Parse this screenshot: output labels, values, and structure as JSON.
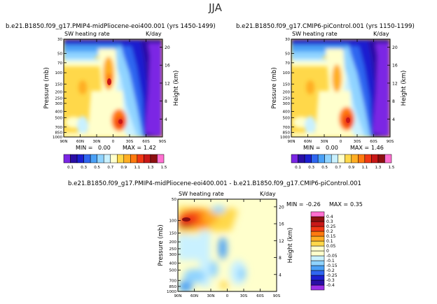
{
  "figure_title": "JJA",
  "colors": {
    "seq_fill": [
      "#7b26e4",
      "#2a0fa6",
      "#1c1fd0",
      "#2f66f0",
      "#4aa0f6",
      "#8fd3ff",
      "#c9f1ff",
      "#ffffcc",
      "#ffd84a",
      "#ffae24",
      "#ff7a10",
      "#f03814",
      "#c81818",
      "#8c1010",
      "#ff6fd0"
    ],
    "div_fill": [
      "#9b2fe8",
      "#2a0fa6",
      "#1c1fd0",
      "#2f66f0",
      "#4aa0f6",
      "#8fd3ff",
      "#c9f1ff",
      "#ffffcc",
      "#ffffcc",
      "#ffd84a",
      "#ffae24",
      "#ff7a10",
      "#f03814",
      "#c81818",
      "#8c1010",
      "#ff6fd0"
    ]
  },
  "chart_data": [
    {
      "type": "heatmap",
      "name": "midPliocene",
      "title": "b.e21.B1850.f09_g17.PMIP4-midPliocene-eoi400.001  (yrs 1450-1499)",
      "left_label": "SW heating rate",
      "right_label": "K/day",
      "ylabel": "Pressure (mb)",
      "ylabel_right": "Height (km)",
      "xticks": [
        "90N",
        "60N",
        "30N",
        "0",
        "30S",
        "60S",
        "90S"
      ],
      "x_values": [
        90,
        60,
        30,
        0,
        -30,
        -60,
        -90
      ],
      "yticks": [
        "30",
        "50",
        "70",
        "100",
        "150",
        "200",
        "250",
        "300",
        "400",
        "500",
        "700",
        "850",
        "1000"
      ],
      "y_values": [
        30,
        50,
        70,
        100,
        150,
        200,
        250,
        300,
        400,
        500,
        700,
        850,
        1000
      ],
      "right_ticks": [
        "20",
        "16",
        "12",
        "8",
        "4"
      ],
      "right_values": [
        20,
        16,
        12,
        8,
        4
      ],
      "min_label": "MIN =",
      "min_value": "0.00",
      "max_label": "MAX =",
      "max_value": "1.42",
      "min": 0.0,
      "max": 1.42,
      "colorbar": [
        "0.1",
        "0.3",
        "0.5",
        "0.7",
        "0.9",
        "1.1",
        "1.3",
        "1.5"
      ],
      "colorbar_note": "labels shown every second level"
    },
    {
      "type": "heatmap",
      "name": "piControl",
      "title": "b.e21.B1850.f09_g17.CMIP6-piControl.001  (yrs 1150-1199)",
      "left_label": "SW heating rate",
      "right_label": "K/day",
      "ylabel": "Pressure (mb)",
      "ylabel_right": "Height (km)",
      "xticks": [
        "90N",
        "60N",
        "30N",
        "0",
        "30S",
        "60S",
        "90S"
      ],
      "x_values": [
        90,
        60,
        30,
        0,
        -30,
        -60,
        -90
      ],
      "yticks": [
        "30",
        "50",
        "70",
        "100",
        "150",
        "200",
        "250",
        "300",
        "400",
        "500",
        "700",
        "850",
        "1000"
      ],
      "y_values": [
        30,
        50,
        70,
        100,
        150,
        200,
        250,
        300,
        400,
        500,
        700,
        850,
        1000
      ],
      "right_ticks": [
        "20",
        "16",
        "12",
        "8",
        "4"
      ],
      "right_values": [
        20,
        16,
        12,
        8,
        4
      ],
      "min_label": "MIN =",
      "min_value": "0.00",
      "max_label": "MAX =",
      "max_value": "1.46",
      "min": 0.0,
      "max": 1.46,
      "colorbar": [
        "0.1",
        "0.3",
        "0.5",
        "0.7",
        "0.9",
        "1.1",
        "1.3",
        "1.5"
      ]
    },
    {
      "type": "heatmap",
      "name": "difference",
      "title": "b.e21.B1850.f09_g17.PMIP4-midPliocene-eoi400.001  -  b.e21.B1850.f09_g17.CMIP6-piControl.001",
      "left_label": "SW heating rate",
      "right_label": "K/day",
      "ylabel": "Pressure (mb)",
      "ylabel_right": "Height (km)",
      "xticks": [
        "90N",
        "60N",
        "30N",
        "0",
        "30S",
        "60S",
        "90S"
      ],
      "x_values": [
        90,
        60,
        30,
        0,
        -30,
        -60,
        -90
      ],
      "yticks": [
        "50",
        "100",
        "150",
        "200",
        "250",
        "300",
        "400",
        "500",
        "700",
        "850",
        "1000"
      ],
      "y_values": [
        50,
        100,
        150,
        200,
        250,
        300,
        400,
        500,
        700,
        850,
        1000
      ],
      "right_ticks": [
        "20",
        "16",
        "12",
        "8",
        "4"
      ],
      "right_values": [
        20,
        16,
        12,
        8,
        4
      ],
      "min_label": "MIN =",
      "min_value": "-0.26",
      "max_label": "MAX =",
      "max_value": "0.35",
      "min": -0.26,
      "max": 0.35,
      "colorbar": [
        "0.4",
        "0.3",
        "0.25",
        "0.2",
        "0.15",
        "0.1",
        "0.05",
        "0",
        "-0.05",
        "-0.1",
        "-0.15",
        "-0.2",
        "-0.25",
        "-0.3",
        "-0.4"
      ]
    }
  ]
}
